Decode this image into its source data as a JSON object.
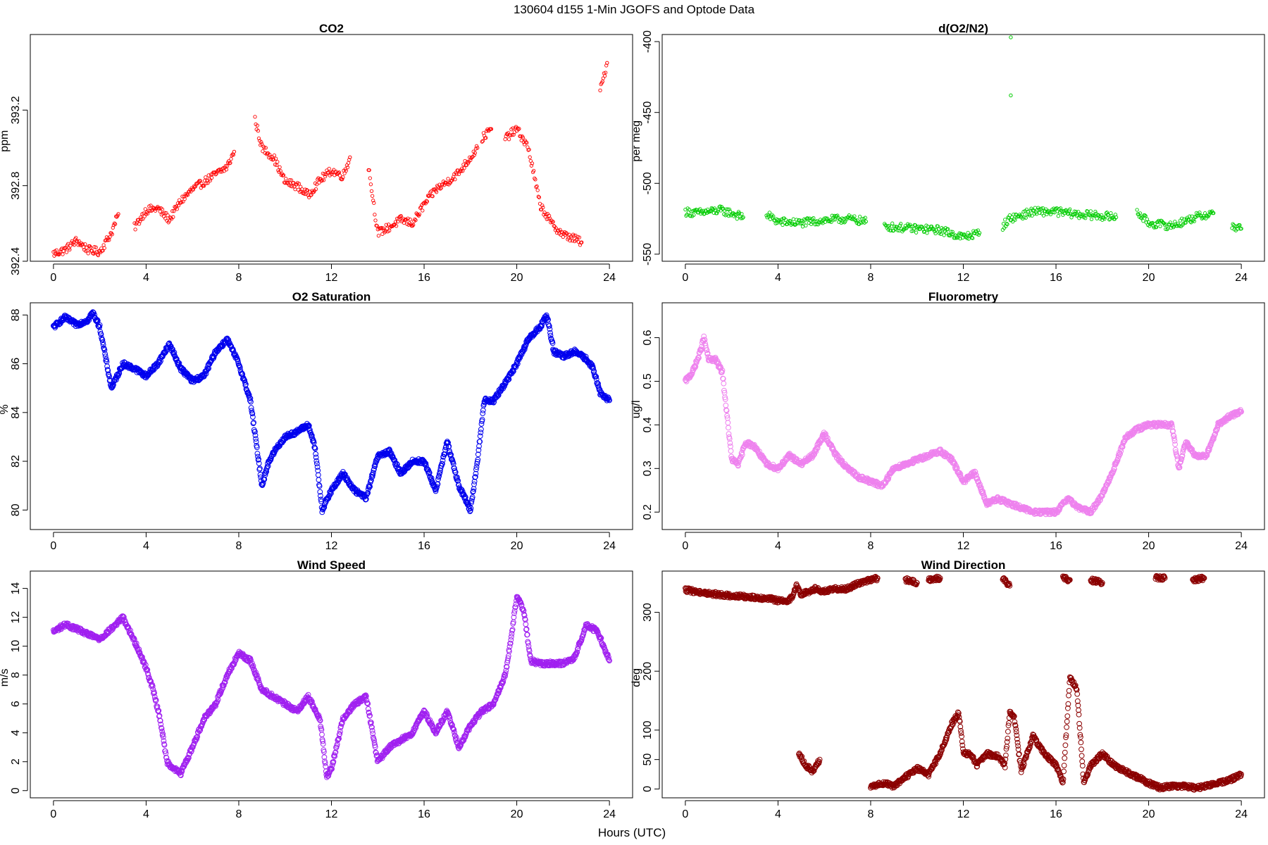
{
  "figure": {
    "title": "130604   d155   1-Min  JGOFS and Optode Data",
    "xlabel": "Hours (UTC)"
  },
  "chart_data": [
    {
      "type": "scatter",
      "title": "CO2",
      "ylabel": "ppm",
      "color": "#ff0000",
      "marker_size": "small",
      "xlim": [
        -1,
        25
      ],
      "ylim": [
        392.4,
        393.6
      ],
      "xticks": [
        0,
        4,
        8,
        12,
        16,
        20,
        24
      ],
      "yticks": [
        392.4,
        392.8,
        393.2
      ],
      "segments": [
        {
          "x": [
            0,
            0.5,
            1,
            1.5,
            2,
            2.5,
            2.8
          ],
          "y": [
            392.44,
            392.46,
            392.51,
            392.46,
            392.45,
            392.55,
            392.65
          ]
        },
        {
          "x": [
            3.5,
            4,
            4.5,
            5,
            5.5,
            6,
            6.5,
            7,
            7.5,
            7.8
          ],
          "y": [
            392.58,
            392.67,
            392.68,
            392.62,
            392.72,
            392.78,
            392.82,
            392.86,
            392.9,
            392.98
          ]
        },
        {
          "x": [
            8.7,
            9,
            9.5,
            10,
            10.5,
            11,
            11.5,
            12,
            12.5,
            12.8
          ],
          "y": [
            393.15,
            393.0,
            392.95,
            392.82,
            392.8,
            392.75,
            392.83,
            392.88,
            392.85,
            392.95
          ]
        },
        {
          "x": [
            13.6,
            14,
            14.5,
            15,
            15.5,
            16,
            16.5,
            17,
            17.5,
            18,
            18.3
          ],
          "y": [
            392.9,
            392.55,
            392.58,
            392.62,
            392.6,
            392.7,
            392.78,
            392.82,
            392.87,
            392.95,
            393.0
          ]
        },
        {
          "x": [
            18.5,
            18.9
          ],
          "y": [
            393.05,
            393.1
          ]
        },
        {
          "x": [
            19.5,
            20,
            20.5,
            21,
            21.5,
            22,
            22.5,
            22.8
          ],
          "y": [
            393.05,
            393.1,
            393.0,
            392.7,
            392.6,
            392.54,
            392.52,
            392.5
          ]
        },
        {
          "x": [
            23.6,
            23.9
          ],
          "y": [
            393.3,
            393.45
          ]
        }
      ]
    },
    {
      "type": "scatter",
      "title": "d(O2/N2)",
      "ylabel": "per meg",
      "color": "#00cc00",
      "marker_size": "small",
      "xlim": [
        -1,
        25
      ],
      "ylim": [
        -555,
        -395
      ],
      "xticks": [
        0,
        4,
        8,
        12,
        16,
        20,
        24
      ],
      "yticks": [
        -550,
        -500,
        -450,
        -400
      ],
      "segments": [
        {
          "x": [
            0,
            0.5,
            1,
            1.5,
            2,
            2.5
          ],
          "y": [
            -520,
            -521,
            -520,
            -519,
            -521,
            -524
          ]
        },
        {
          "x": [
            3.5,
            4,
            5,
            6,
            7,
            7.8
          ],
          "y": [
            -522,
            -527,
            -528,
            -526,
            -525,
            -527
          ]
        },
        {
          "x": [
            8.6,
            9,
            10,
            11,
            12,
            12.7
          ],
          "y": [
            -530,
            -531,
            -532,
            -533,
            -538,
            -535
          ]
        },
        {
          "x": [
            13.7,
            14,
            15,
            16,
            17,
            18,
            18.6
          ],
          "y": [
            -530,
            -525,
            -520,
            -520,
            -522,
            -523,
            -524
          ]
        },
        {
          "x": [
            19.5,
            20,
            21,
            22,
            22.8
          ],
          "y": [
            -520,
            -528,
            -530,
            -524,
            -521
          ]
        },
        {
          "x": [
            23.6,
            24
          ],
          "y": [
            -530,
            -532
          ]
        }
      ],
      "outliers": {
        "x": [
          14.05,
          14.05
        ],
        "y": [
          -397,
          -438
        ]
      }
    },
    {
      "type": "scatter",
      "title": "O2 Saturation",
      "ylabel": "%",
      "color": "#0000ee",
      "marker_size": "medium",
      "xlim": [
        -1,
        25
      ],
      "ylim": [
        79.2,
        88.5
      ],
      "xticks": [
        0,
        4,
        8,
        12,
        16,
        20,
        24
      ],
      "yticks": [
        80,
        82,
        84,
        86,
        88
      ],
      "segments": [
        {
          "x": [
            0,
            0.5,
            1,
            1.5,
            1.7,
            2,
            2.3,
            2.5,
            3,
            3.5,
            4,
            4.5,
            5,
            5.5,
            6,
            6.5,
            7,
            7.5,
            8,
            8.5,
            9,
            9.3,
            9.6,
            10,
            10.5,
            11,
            11.3,
            11.6,
            12,
            12.5,
            13,
            13.5,
            14,
            14.5,
            15,
            15.5,
            16,
            16.5,
            17,
            17.5,
            18,
            18.3,
            18.6,
            19,
            19.5,
            20,
            20.5,
            21,
            21.3,
            21.6,
            22,
            22.5,
            23,
            23.3,
            23.6,
            24
          ],
          "y": [
            87.5,
            87.9,
            87.6,
            87.8,
            88.1,
            87.5,
            86.0,
            85.0,
            86.0,
            85.8,
            85.5,
            86.0,
            86.8,
            85.8,
            85.3,
            85.5,
            86.5,
            87.0,
            86.0,
            84.5,
            81.0,
            82.0,
            82.5,
            83.0,
            83.2,
            83.5,
            82.5,
            80.0,
            80.8,
            81.5,
            80.8,
            80.5,
            82.2,
            82.4,
            81.5,
            82.0,
            82.0,
            80.8,
            82.8,
            81.0,
            80.0,
            82.0,
            84.5,
            84.5,
            85.2,
            86.0,
            87.0,
            87.5,
            88.0,
            86.5,
            86.3,
            86.5,
            86.2,
            85.8,
            84.8,
            84.5
          ]
        }
      ]
    },
    {
      "type": "scatter",
      "title": "Fluorometry",
      "ylabel": "ug/l",
      "color": "#ee82ee",
      "marker_size": "medium",
      "xlim": [
        -1,
        25
      ],
      "ylim": [
        0.16,
        0.68
      ],
      "xticks": [
        0,
        4,
        8,
        12,
        16,
        20,
        24
      ],
      "yticks": [
        0.2,
        0.3,
        0.4,
        0.5,
        0.6
      ],
      "segments": [
        {
          "x": [
            0,
            0.3,
            0.6,
            0.8,
            1,
            1.3,
            1.6,
            1.8,
            2,
            2.3,
            2.6,
            3,
            3.5,
            4,
            4.5,
            5,
            5.5,
            6,
            6.5,
            7,
            7.5,
            8,
            8.5,
            9,
            9.5,
            10,
            10.5,
            11,
            11.5,
            12,
            12.5,
            13,
            13.5,
            14,
            14.5,
            15,
            15.5,
            16,
            16.5,
            17,
            17.5,
            18,
            18.5,
            19,
            19.5,
            20,
            20.5,
            21,
            21.3,
            21.6,
            22,
            22.5,
            23,
            23.5,
            24
          ],
          "y": [
            0.5,
            0.52,
            0.56,
            0.6,
            0.55,
            0.55,
            0.52,
            0.42,
            0.32,
            0.31,
            0.36,
            0.35,
            0.31,
            0.3,
            0.33,
            0.31,
            0.33,
            0.38,
            0.33,
            0.3,
            0.28,
            0.27,
            0.26,
            0.3,
            0.31,
            0.32,
            0.33,
            0.34,
            0.32,
            0.27,
            0.29,
            0.22,
            0.23,
            0.22,
            0.21,
            0.2,
            0.2,
            0.2,
            0.23,
            0.21,
            0.2,
            0.24,
            0.3,
            0.37,
            0.39,
            0.4,
            0.4,
            0.4,
            0.3,
            0.36,
            0.33,
            0.33,
            0.4,
            0.42,
            0.43
          ]
        }
      ]
    },
    {
      "type": "scatter",
      "title": "Wind Speed",
      "ylabel": "m/s",
      "color": "#a020f0",
      "marker_size": "medium",
      "xlim": [
        -1,
        25
      ],
      "ylim": [
        -0.5,
        15.2
      ],
      "xticks": [
        0,
        4,
        8,
        12,
        16,
        20,
        24
      ],
      "yticks": [
        0,
        2,
        4,
        6,
        8,
        10,
        12,
        14
      ],
      "segments": [
        {
          "x": [
            0,
            0.5,
            1,
            1.5,
            2,
            2.5,
            3,
            3.3,
            3.6,
            4,
            4.3,
            4.6,
            4.9,
            5.2,
            5.5,
            6,
            6.5,
            7,
            7.5,
            8,
            8.5,
            9,
            9.5,
            10,
            10.5,
            11,
            11.5,
            11.8,
            12,
            12.5,
            13,
            13.5,
            14,
            14.5,
            15,
            15.5,
            16,
            16.5,
            17,
            17.5,
            18,
            18.5,
            19,
            19.5,
            19.8,
            20,
            20.3,
            20.6,
            21,
            21.5,
            22,
            22.5,
            23,
            23.5,
            24
          ],
          "y": [
            11.0,
            11.5,
            11.2,
            10.8,
            10.5,
            11.2,
            12.0,
            11.0,
            10.0,
            8.5,
            7.0,
            5.0,
            2.0,
            1.5,
            1.2,
            3.0,
            5.0,
            6.0,
            8.0,
            9.5,
            9.0,
            7.0,
            6.5,
            6.0,
            5.5,
            6.5,
            5.0,
            1.0,
            1.5,
            5.0,
            6.0,
            6.5,
            2.0,
            3.0,
            3.5,
            4.0,
            5.5,
            4.0,
            5.5,
            3.0,
            4.5,
            5.5,
            6.0,
            8.0,
            11.0,
            13.5,
            12.5,
            9.0,
            8.8,
            8.8,
            8.8,
            9.2,
            11.5,
            11.0,
            9.0
          ]
        }
      ]
    },
    {
      "type": "scatter",
      "title": "Wind Direction",
      "ylabel": "deg",
      "color": "#8b0000",
      "marker_size": "medium",
      "xlim": [
        -1,
        25
      ],
      "ylim": [
        -15,
        370
      ],
      "xticks": [
        0,
        4,
        8,
        12,
        16,
        20,
        24
      ],
      "yticks": [
        0,
        50,
        100,
        200,
        300
      ],
      "segments": [
        {
          "x": [
            0,
            0.5,
            1,
            1.5,
            2,
            2.5,
            3,
            3.5,
            4,
            4.3,
            4.6,
            4.8,
            5.0,
            5.3,
            5.6,
            6,
            6.5,
            7,
            7.5,
            8,
            8.3
          ],
          "y": [
            338,
            335,
            332,
            330,
            328,
            327,
            325,
            324,
            320,
            318,
            325,
            345,
            330,
            335,
            340,
            335,
            340,
            340,
            350,
            355,
            358
          ]
        },
        {
          "x": [
            9.5,
            10
          ],
          "y": [
            355,
            350
          ]
        },
        {
          "x": [
            10.5,
            11
          ],
          "y": [
            355,
            358
          ]
        },
        {
          "x": [
            13.7,
            14.0
          ],
          "y": [
            358,
            345
          ]
        },
        {
          "x": [
            16.3,
            16.6
          ],
          "y": [
            358,
            355
          ]
        },
        {
          "x": [
            17.5,
            18.0
          ],
          "y": [
            355,
            350
          ]
        },
        {
          "x": [
            20.3,
            20.7
          ],
          "y": [
            358,
            358
          ]
        },
        {
          "x": [
            21.9,
            22.4
          ],
          "y": [
            355,
            358
          ]
        },
        {
          "x": [
            4.9,
            5.2,
            5.5,
            5.8
          ],
          "y": [
            60,
            40,
            30,
            50
          ]
        },
        {
          "x": [
            8.0,
            8.5,
            9.0,
            9.5,
            10.0,
            10.5,
            11.0,
            11.5,
            11.8,
            12.0,
            12.3,
            12.6,
            13.0,
            13.5,
            13.8,
            14.0,
            14.2,
            14.5,
            15.0,
            15.5,
            16.0,
            16.3,
            16.6,
            16.9,
            17.2,
            17.5,
            18.0,
            18.5,
            19.0,
            19.5,
            20.0,
            20.5,
            21.0,
            21.5,
            22.0,
            22.5,
            23.0,
            23.5,
            24.0
          ],
          "y": [
            2,
            10,
            5,
            20,
            35,
            25,
            60,
            110,
            130,
            60,
            60,
            40,
            60,
            55,
            40,
            130,
            120,
            30,
            90,
            60,
            40,
            10,
            190,
            170,
            10,
            40,
            60,
            40,
            30,
            20,
            10,
            2,
            5,
            5,
            2,
            5,
            10,
            15,
            25
          ]
        }
      ]
    }
  ]
}
